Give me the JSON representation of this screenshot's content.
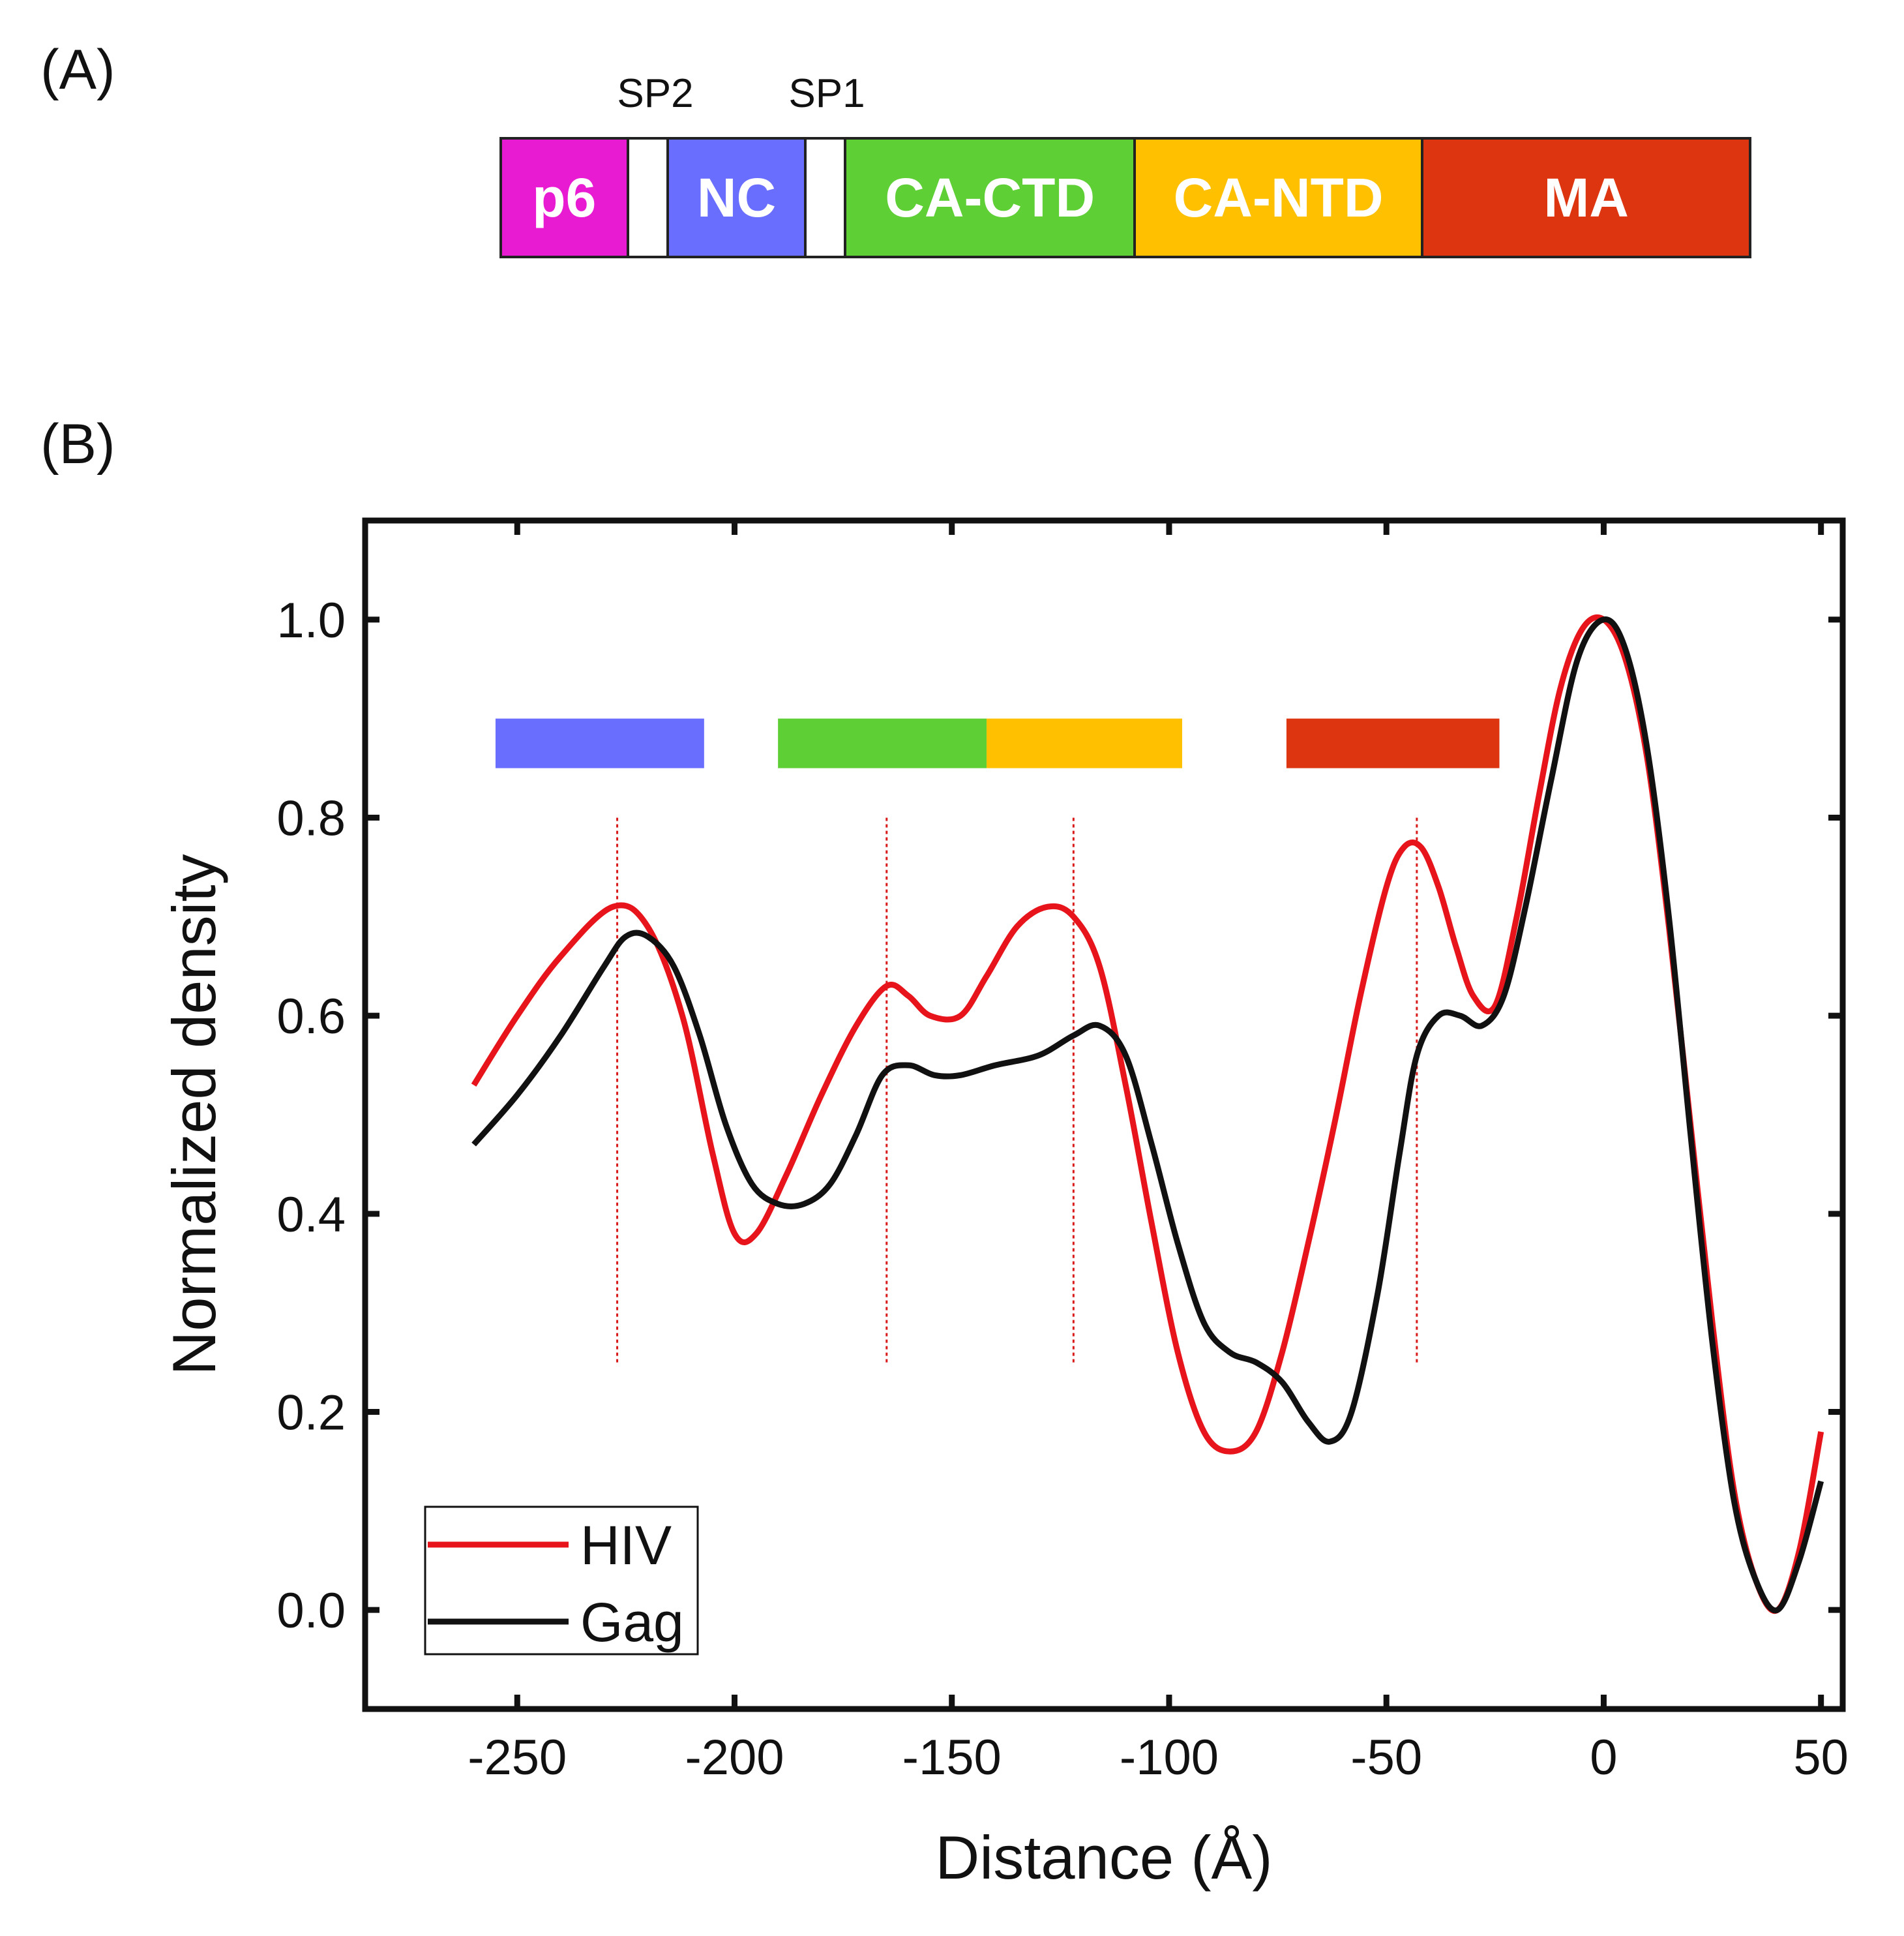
{
  "panel_a": {
    "label": "(A)",
    "sp2_label": "SP2",
    "sp1_label": "SP1",
    "segments": [
      {
        "label": "p6",
        "color": "#E81BD2",
        "flex": 193
      },
      {
        "label": "",
        "color": "#FFFFFF",
        "flex": 58
      },
      {
        "label": "NC",
        "color": "#6A6EFF",
        "flex": 210
      },
      {
        "label": "",
        "color": "#FFFFFF",
        "flex": 58
      },
      {
        "label": "CA-CTD",
        "color": "#5ECF35",
        "flex": 445
      },
      {
        "label": "CA-NTD",
        "color": "#FFC000",
        "flex": 443
      },
      {
        "label": "MA",
        "color": "#DC3510",
        "flex": 505
      }
    ]
  },
  "panel_b": {
    "label": "(B)"
  },
  "chart_data": {
    "type": "line",
    "xlabel": "Distance (Å)",
    "ylabel": "Normalized density",
    "xlim": [
      -285,
      55
    ],
    "ylim": [
      -0.1,
      1.1
    ],
    "xticks": [
      -250,
      -200,
      -150,
      -100,
      -50,
      0,
      50
    ],
    "xtick_labels": [
      "-250",
      "-200",
      "-150",
      "-100",
      "-50",
      "0",
      "50"
    ],
    "yticks": [
      0.0,
      0.2,
      0.4,
      0.6,
      0.8,
      1.0
    ],
    "ytick_labels": [
      "0.0",
      "0.2",
      "0.4",
      "0.6",
      "0.8",
      "1.0"
    ],
    "grid": false,
    "legend_position": "bottom-left",
    "series": [
      {
        "name": "HIV",
        "color": "#E8141B",
        "x": [
          -260,
          -250,
          -240,
          -228,
          -220,
          -212,
          -205,
          -200,
          -195,
          -188,
          -180,
          -172,
          -165,
          -160,
          -155,
          -148,
          -142,
          -135,
          -128,
          -122,
          -116,
          -110,
          -104,
          -98,
          -92,
          -86,
          -80,
          -74,
          -68,
          -62,
          -56,
          -50,
          -46,
          -42,
          -38,
          -34,
          -30,
          -25,
          -20,
          -15,
          -10,
          -5,
          0,
          5,
          10,
          15,
          20,
          25,
          30,
          35,
          40,
          45,
          50
        ],
        "y": [
          0.53,
          0.6,
          0.66,
          0.71,
          0.69,
          0.6,
          0.46,
          0.38,
          0.38,
          0.44,
          0.52,
          0.59,
          0.63,
          0.62,
          0.6,
          0.6,
          0.64,
          0.69,
          0.71,
          0.7,
          0.65,
          0.53,
          0.39,
          0.26,
          0.18,
          0.16,
          0.18,
          0.26,
          0.37,
          0.49,
          0.62,
          0.73,
          0.77,
          0.77,
          0.73,
          0.67,
          0.62,
          0.61,
          0.7,
          0.82,
          0.93,
          0.99,
          1.0,
          0.96,
          0.86,
          0.69,
          0.49,
          0.29,
          0.12,
          0.03,
          0.0,
          0.06,
          0.18
        ]
      },
      {
        "name": "Gag",
        "color": "#111111",
        "x": [
          -260,
          -250,
          -240,
          -230,
          -225,
          -220,
          -214,
          -208,
          -202,
          -196,
          -190,
          -184,
          -178,
          -172,
          -166,
          -160,
          -154,
          -148,
          -140,
          -130,
          -122,
          -116,
          -110,
          -104,
          -98,
          -92,
          -86,
          -80,
          -74,
          -68,
          -63,
          -58,
          -52,
          -47,
          -43,
          -38,
          -33,
          -28,
          -23,
          -18,
          -12,
          -6,
          0,
          5,
          10,
          15,
          20,
          25,
          30,
          35,
          40,
          45,
          50
        ],
        "y": [
          0.47,
          0.52,
          0.58,
          0.65,
          0.68,
          0.68,
          0.65,
          0.58,
          0.49,
          0.43,
          0.41,
          0.41,
          0.43,
          0.48,
          0.54,
          0.55,
          0.54,
          0.54,
          0.55,
          0.56,
          0.58,
          0.59,
          0.56,
          0.47,
          0.37,
          0.29,
          0.26,
          0.25,
          0.23,
          0.19,
          0.17,
          0.2,
          0.32,
          0.46,
          0.56,
          0.6,
          0.6,
          0.59,
          0.62,
          0.71,
          0.84,
          0.96,
          1.0,
          0.97,
          0.87,
          0.7,
          0.48,
          0.27,
          0.11,
          0.03,
          0.0,
          0.05,
          0.13
        ]
      }
    ],
    "domain_bars": [
      {
        "color": "#6A6EFF",
        "x0": -255,
        "x1": -207,
        "y": 0.875
      },
      {
        "color": "#5ECF35",
        "x0": -190,
        "x1": -142,
        "y": 0.875
      },
      {
        "color": "#FFC000",
        "x0": -142,
        "x1": -97,
        "y": 0.875
      },
      {
        "color": "#DC3510",
        "x0": -73,
        "x1": -24,
        "y": 0.875
      }
    ],
    "reference_lines": {
      "color": "#D91A1A",
      "x": [
        -227,
        -165,
        -122,
        -43
      ],
      "y0": 0.25,
      "y1": 0.8
    }
  }
}
